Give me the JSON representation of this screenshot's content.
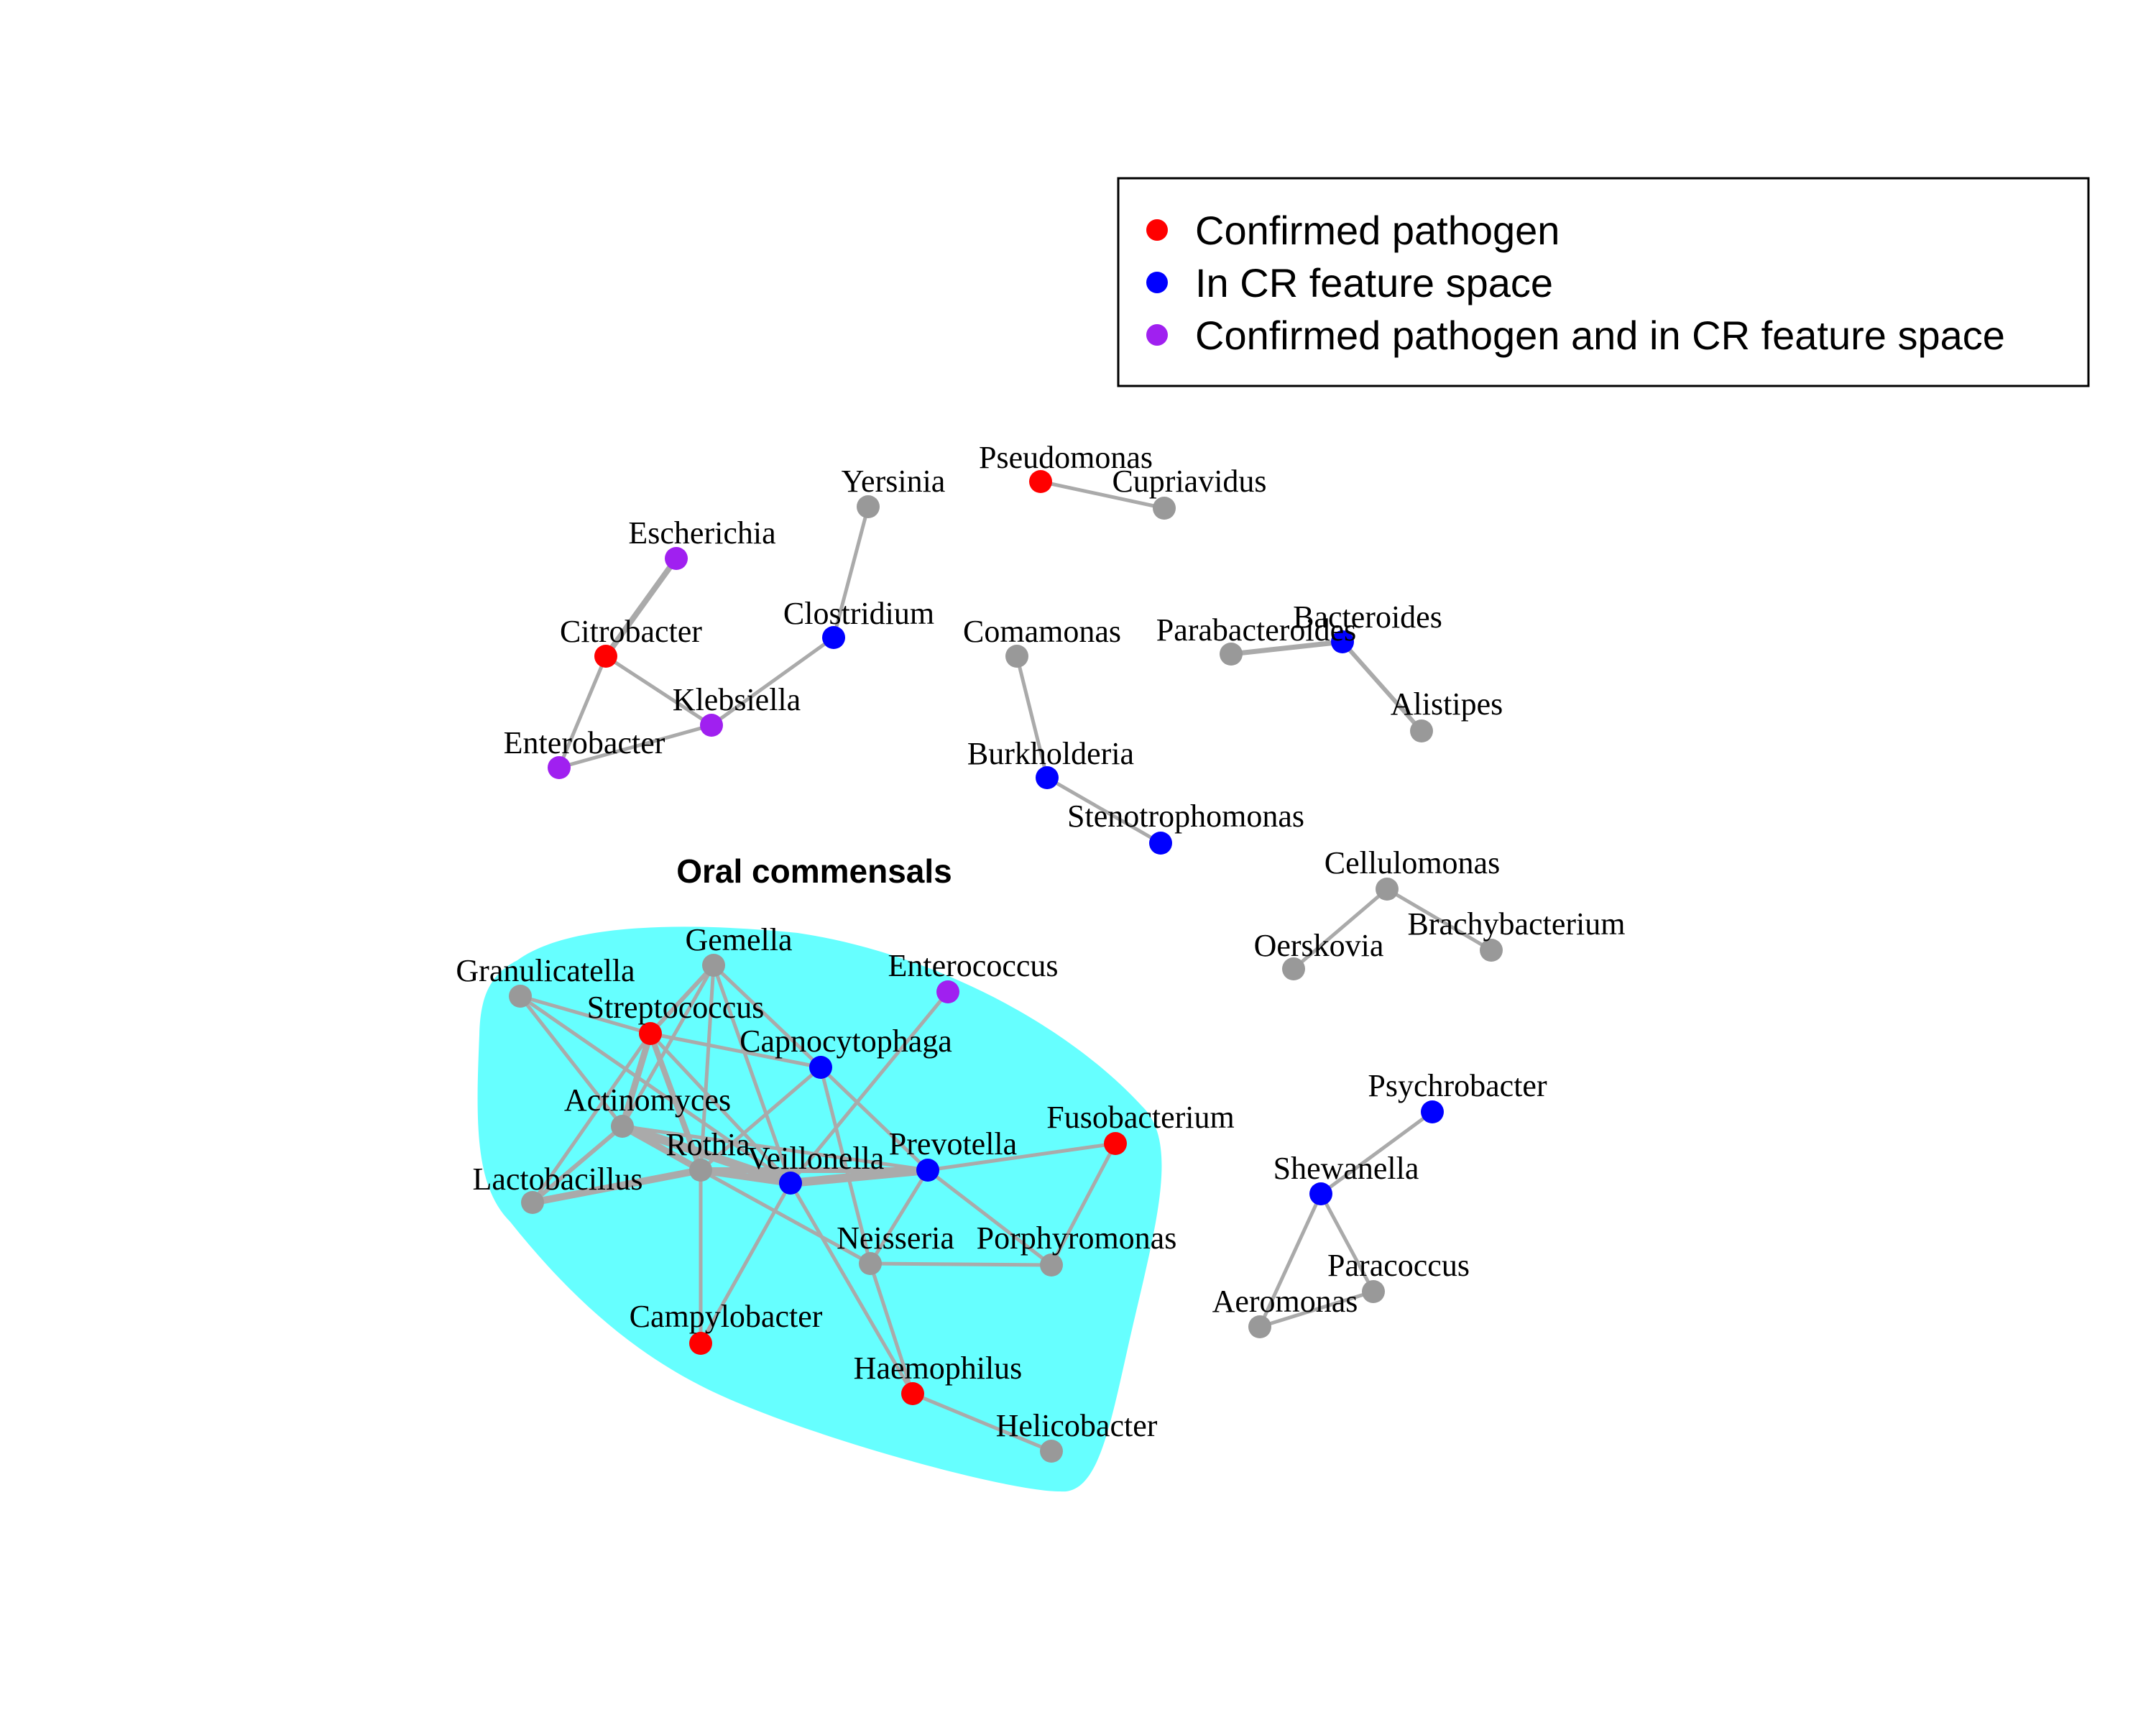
{
  "legend": {
    "items": [
      {
        "label": "Confirmed pathogen",
        "color": "#ff0000"
      },
      {
        "label": "In CR feature space",
        "color": "#0000ff"
      },
      {
        "label": "Confirmed pathogen and in CR feature space",
        "color": "#a020f0"
      }
    ]
  },
  "colors": {
    "pathogen": "#ff0000",
    "cr_feature": "#0000ff",
    "both": "#a020f0",
    "other": "#999999",
    "edge": "#aaaaaa",
    "cluster_fill": "#66ffff"
  },
  "cluster": {
    "title": "Oral commensals"
  },
  "nodes": [
    {
      "id": "Pseudomonas",
      "category": "pathogen"
    },
    {
      "id": "Cupriavidus",
      "category": "other"
    },
    {
      "id": "Yersinia",
      "category": "other"
    },
    {
      "id": "Escherichia",
      "category": "both"
    },
    {
      "id": "Citrobacter",
      "category": "pathogen"
    },
    {
      "id": "Clostridium",
      "category": "cr_feature"
    },
    {
      "id": "Klebsiella",
      "category": "both"
    },
    {
      "id": "Enterobacter",
      "category": "both"
    },
    {
      "id": "Comamonas",
      "category": "other"
    },
    {
      "id": "Parabacteroides",
      "category": "other"
    },
    {
      "id": "Bacteroides",
      "category": "cr_feature"
    },
    {
      "id": "Alistipes",
      "category": "other"
    },
    {
      "id": "Burkholderia",
      "category": "cr_feature"
    },
    {
      "id": "Stenotrophomonas",
      "category": "cr_feature"
    },
    {
      "id": "Cellulomonas",
      "category": "other"
    },
    {
      "id": "Oerskovia",
      "category": "other"
    },
    {
      "id": "Brachybacterium",
      "category": "other"
    },
    {
      "id": "Psychrobacter",
      "category": "cr_feature"
    },
    {
      "id": "Shewanella",
      "category": "cr_feature"
    },
    {
      "id": "Paracoccus",
      "category": "other"
    },
    {
      "id": "Aeromonas",
      "category": "other"
    },
    {
      "id": "Gemella",
      "category": "other"
    },
    {
      "id": "Granulicatella",
      "category": "other"
    },
    {
      "id": "Streptococcus",
      "category": "pathogen"
    },
    {
      "id": "Enterococcus",
      "category": "both"
    },
    {
      "id": "Capnocytophaga",
      "category": "cr_feature"
    },
    {
      "id": "Actinomyces",
      "category": "other"
    },
    {
      "id": "Rothia",
      "category": "other"
    },
    {
      "id": "Veillonella",
      "category": "cr_feature"
    },
    {
      "id": "Prevotella",
      "category": "cr_feature"
    },
    {
      "id": "Fusobacterium",
      "category": "pathogen"
    },
    {
      "id": "Lactobacillus",
      "category": "other"
    },
    {
      "id": "Neisseria",
      "category": "other"
    },
    {
      "id": "Porphyromonas",
      "category": "other"
    },
    {
      "id": "Campylobacter",
      "category": "pathogen"
    },
    {
      "id": "Haemophilus",
      "category": "pathogen"
    },
    {
      "id": "Helicobacter",
      "category": "other"
    }
  ],
  "edges": [
    [
      "Pseudomonas",
      "Cupriavidus"
    ],
    [
      "Yersinia",
      "Clostridium"
    ],
    [
      "Clostridium",
      "Klebsiella"
    ],
    [
      "Escherichia",
      "Citrobacter"
    ],
    [
      "Citrobacter",
      "Klebsiella"
    ],
    [
      "Citrobacter",
      "Enterobacter"
    ],
    [
      "Enterobacter",
      "Klebsiella"
    ],
    [
      "Comamonas",
      "Burkholderia"
    ],
    [
      "Burkholderia",
      "Stenotrophomonas"
    ],
    [
      "Parabacteroides",
      "Bacteroides"
    ],
    [
      "Bacteroides",
      "Alistipes"
    ],
    [
      "Cellulomonas",
      "Oerskovia"
    ],
    [
      "Cellulomonas",
      "Brachybacterium"
    ],
    [
      "Psychrobacter",
      "Shewanella"
    ],
    [
      "Shewanella",
      "Aeromonas"
    ],
    [
      "Shewanella",
      "Paracoccus"
    ],
    [
      "Aeromonas",
      "Paracoccus"
    ],
    [
      "Granulicatella",
      "Streptococcus"
    ],
    [
      "Granulicatella",
      "Actinomyces"
    ],
    [
      "Granulicatella",
      "Veillonella"
    ],
    [
      "Gemella",
      "Streptococcus"
    ],
    [
      "Gemella",
      "Actinomyces"
    ],
    [
      "Gemella",
      "Rothia"
    ],
    [
      "Gemella",
      "Capnocytophaga"
    ],
    [
      "Gemella",
      "Veillonella"
    ],
    [
      "Streptococcus",
      "Capnocytophaga"
    ],
    [
      "Streptococcus",
      "Actinomyces"
    ],
    [
      "Streptococcus",
      "Rothia"
    ],
    [
      "Streptococcus",
      "Lactobacillus"
    ],
    [
      "Streptococcus",
      "Veillonella"
    ],
    [
      "Enterococcus",
      "Veillonella"
    ],
    [
      "Capnocytophaga",
      "Rothia"
    ],
    [
      "Capnocytophaga",
      "Neisseria"
    ],
    [
      "Capnocytophaga",
      "Prevotella"
    ],
    [
      "Actinomyces",
      "Lactobacillus"
    ],
    [
      "Actinomyces",
      "Rothia"
    ],
    [
      "Actinomyces",
      "Veillonella"
    ],
    [
      "Actinomyces",
      "Prevotella"
    ],
    [
      "Rothia",
      "Lactobacillus"
    ],
    [
      "Rothia",
      "Veillonella"
    ],
    [
      "Rothia",
      "Prevotella"
    ],
    [
      "Rothia",
      "Neisseria"
    ],
    [
      "Rothia",
      "Campylobacter"
    ],
    [
      "Veillonella",
      "Prevotella"
    ],
    [
      "Veillonella",
      "Campylobacter"
    ],
    [
      "Veillonella",
      "Haemophilus"
    ],
    [
      "Prevotella",
      "Fusobacterium"
    ],
    [
      "Prevotella",
      "Neisseria"
    ],
    [
      "Prevotella",
      "Porphyromonas"
    ],
    [
      "Fusobacterium",
      "Porphyromonas"
    ],
    [
      "Neisseria",
      "Porphyromonas"
    ],
    [
      "Neisseria",
      "Haemophilus"
    ],
    [
      "Haemophilus",
      "Helicobacter"
    ]
  ]
}
